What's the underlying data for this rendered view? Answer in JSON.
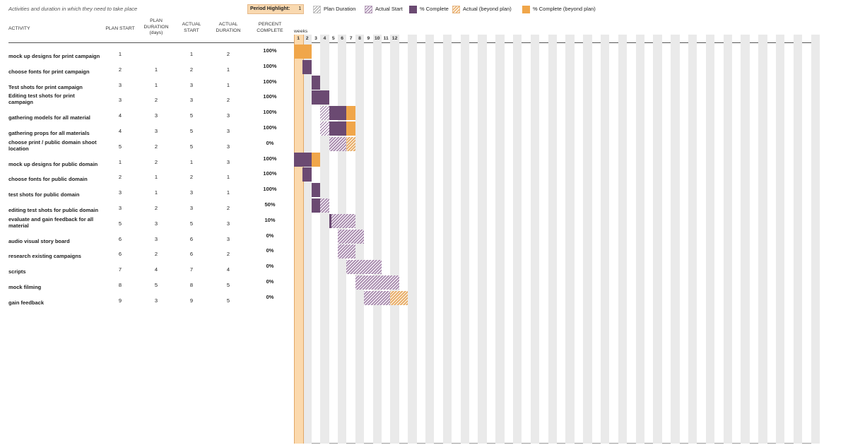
{
  "header": {
    "subtitle": "Activities and duration in which they need to take place",
    "period_highlight_label": "Period Highlight:",
    "period_highlight_value": "1",
    "legend": [
      {
        "label": "Plan Duration",
        "style": "hatch-gray"
      },
      {
        "label": "Actual Start",
        "style": "hatch-purple"
      },
      {
        "label": "% Complete",
        "style": "solid-purple"
      },
      {
        "label": "Actual (beyond plan)",
        "style": "hatch-orange"
      },
      {
        "label": "% Complete (beyond plan)",
        "style": "solid-orange"
      }
    ]
  },
  "columns": {
    "activity": "ACTIVITY",
    "plan_start": "PLAN START",
    "plan_duration": "PLAN DURATION (days)",
    "actual_start": "ACTUAL START",
    "actual_duration": "ACTUAL DURATION",
    "percent_complete": "PERCENT COMPLETE",
    "weeks": "weeks"
  },
  "week_numbers": [
    "1",
    "2",
    "3",
    "4",
    "5",
    "6",
    "7",
    "8",
    "9",
    "10",
    "11",
    "12"
  ],
  "colors": {
    "purple": "#6b4a72",
    "orange": "#f0a64a",
    "highlight": "#fbd9ad"
  },
  "rows": [
    {
      "activity": "mock up designs for print campaign",
      "plan_start": 1,
      "plan_duration": "",
      "actual_start": 1,
      "actual_duration": 2,
      "percent": "100%"
    },
    {
      "activity": "choose fonts for print campaign",
      "plan_start": 2,
      "plan_duration": 1,
      "actual_start": 2,
      "actual_duration": 1,
      "percent": "100%"
    },
    {
      "activity": "Test shots for print campaign",
      "plan_start": 3,
      "plan_duration": 1,
      "actual_start": 3,
      "actual_duration": 1,
      "percent": "100%"
    },
    {
      "activity": "Editing test shots for print campaign",
      "plan_start": 3,
      "plan_duration": 2,
      "actual_start": 3,
      "actual_duration": 2,
      "percent": "100%"
    },
    {
      "activity": "gathering models for all material",
      "plan_start": 4,
      "plan_duration": 3,
      "actual_start": 5,
      "actual_duration": 3,
      "percent": "100%"
    },
    {
      "activity": "gathering props for all materials",
      "plan_start": 4,
      "plan_duration": 3,
      "actual_start": 5,
      "actual_duration": 3,
      "percent": "100%"
    },
    {
      "activity": "choose print / public domain shoot location",
      "plan_start": 5,
      "plan_duration": 2,
      "actual_start": 5,
      "actual_duration": 3,
      "percent": "0%"
    },
    {
      "activity": "mock up designs for public domain",
      "plan_start": 1,
      "plan_duration": 2,
      "actual_start": 1,
      "actual_duration": 3,
      "percent": "100%"
    },
    {
      "activity": "choose fonts for public domain",
      "plan_start": 2,
      "plan_duration": 1,
      "actual_start": 2,
      "actual_duration": 1,
      "percent": "100%"
    },
    {
      "activity": "test shots for public domain",
      "plan_start": 3,
      "plan_duration": 1,
      "actual_start": 3,
      "actual_duration": 1,
      "percent": "100%"
    },
    {
      "activity": "editing test shots for public domain",
      "plan_start": 3,
      "plan_duration": 2,
      "actual_start": 3,
      "actual_duration": 2,
      "percent": "50%"
    },
    {
      "activity": "evaluate and gain feedback for all material",
      "plan_start": 5,
      "plan_duration": 3,
      "actual_start": 5,
      "actual_duration": 3,
      "percent": "10%"
    },
    {
      "activity": "audio visual story board",
      "plan_start": 6,
      "plan_duration": 3,
      "actual_start": 6,
      "actual_duration": 3,
      "percent": "0%"
    },
    {
      "activity": "research existing campaigns",
      "plan_start": 6,
      "plan_duration": 2,
      "actual_start": 6,
      "actual_duration": 2,
      "percent": "0%"
    },
    {
      "activity": "scripts",
      "plan_start": 7,
      "plan_duration": 4,
      "actual_start": 7,
      "actual_duration": 4,
      "percent": "0%"
    },
    {
      "activity": "mock filming",
      "plan_start": 8,
      "plan_duration": 5,
      "actual_start": 8,
      "actual_duration": 5,
      "percent": "0%"
    },
    {
      "activity": "gain feedback",
      "plan_start": 9,
      "plan_duration": 3,
      "actual_start": 9,
      "actual_duration": 5,
      "percent": "0%"
    }
  ]
}
